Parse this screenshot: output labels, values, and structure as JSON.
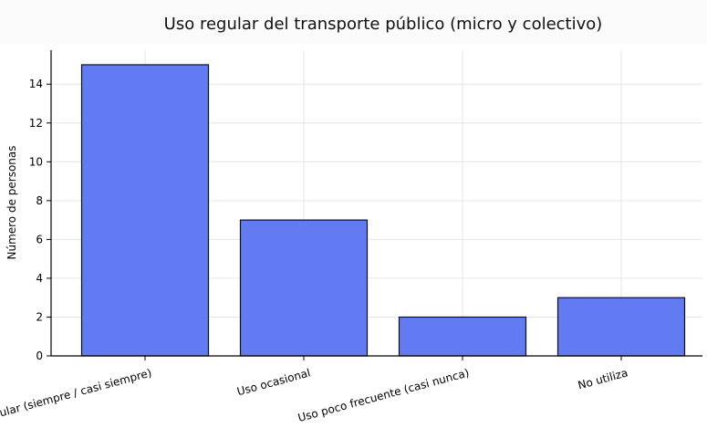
{
  "chart_data": {
    "type": "bar",
    "title": "Uso regular del transporte público (micro y colectivo)",
    "xlabel": "",
    "ylabel": "Número de personas",
    "categories": [
      "Uso regular (siempre / casi siempre)",
      "Uso ocasional",
      "Uso poco frecuente (casi nunca)",
      "No utiliza"
    ],
    "values": [
      15,
      7,
      2,
      3
    ],
    "ylim": [
      0,
      15.75
    ],
    "yticks": [
      "0",
      "2",
      "4",
      "6",
      "8",
      "10",
      "12",
      "14"
    ],
    "grid": true,
    "legend": "none",
    "colors": {
      "bar": "#627bf2",
      "bar_edge": "#111111",
      "grid": "#e6e6e6",
      "axis": "#000000",
      "text": "#000000"
    }
  }
}
